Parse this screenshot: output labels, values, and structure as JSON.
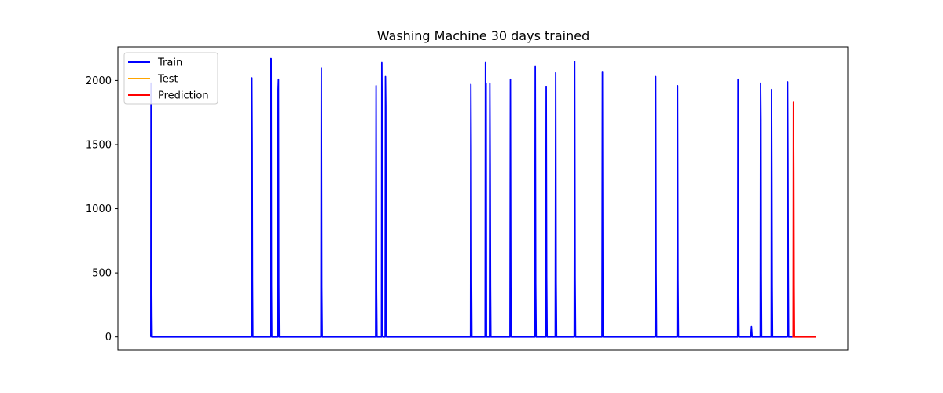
{
  "chart_data": {
    "type": "line",
    "title": "Washing Machine 30 days trained",
    "xlabel": "",
    "ylabel": "",
    "x_ticks_visible": false,
    "x_range": [
      0,
      1000
    ],
    "ylim": [
      -100,
      2260
    ],
    "y_ticks": [
      0,
      500,
      1000,
      1500,
      2000
    ],
    "legend_position": "top-left",
    "grid": false,
    "series": [
      {
        "name": "Train",
        "color": "#0000ff",
        "baseline": 0,
        "spikes": [
          {
            "x": 46,
            "values": [
              1980,
              150,
              980,
              430,
              160
            ]
          },
          {
            "x": 184,
            "values": [
              2020,
              1500,
              430
            ]
          },
          {
            "x": 210,
            "values": [
              2170,
              2170,
              400
            ]
          },
          {
            "x": 220,
            "values": [
              1930,
              2010,
              410
            ]
          },
          {
            "x": 279,
            "values": [
              2100,
              390
            ]
          },
          {
            "x": 354,
            "values": [
              1960,
              360
            ]
          },
          {
            "x": 362,
            "values": [
              2140,
              1730,
              380
            ]
          },
          {
            "x": 367,
            "values": [
              2030,
              1800,
              390
            ]
          },
          {
            "x": 484,
            "values": [
              1970,
              1480,
              420
            ]
          },
          {
            "x": 504,
            "values": [
              2140,
              1680,
              1980
            ]
          },
          {
            "x": 510,
            "values": [
              1980,
              1350,
              390
            ]
          },
          {
            "x": 538,
            "values": [
              2010,
              390
            ]
          },
          {
            "x": 572,
            "values": [
              2110,
              420
            ]
          },
          {
            "x": 587,
            "values": [
              1950,
              470
            ]
          },
          {
            "x": 600,
            "values": [
              2060,
              430
            ]
          },
          {
            "x": 626,
            "values": [
              2150,
              460
            ]
          },
          {
            "x": 664,
            "values": [
              2070,
              390
            ]
          },
          {
            "x": 737,
            "values": [
              2030,
              500
            ]
          },
          {
            "x": 767,
            "values": [
              1960,
              450
            ]
          },
          {
            "x": 850,
            "values": [
              2010,
              1070,
              360
            ]
          },
          {
            "x": 868,
            "values": [
              80
            ]
          },
          {
            "x": 881,
            "values": [
              1980,
              1700,
              490
            ]
          },
          {
            "x": 896,
            "values": [
              1930,
              1250,
              390
            ]
          },
          {
            "x": 918,
            "values": [
              1990,
              1380,
              510
            ]
          }
        ],
        "end_x": 924
      },
      {
        "name": "Test",
        "color": "#ffa500",
        "points": []
      },
      {
        "name": "Prediction",
        "color": "#ff0000",
        "baseline": 0,
        "spikes": [
          {
            "x": 926,
            "values": [
              1830,
              1300,
              400
            ]
          }
        ],
        "start_x": 924,
        "end_x": 956
      }
    ]
  }
}
